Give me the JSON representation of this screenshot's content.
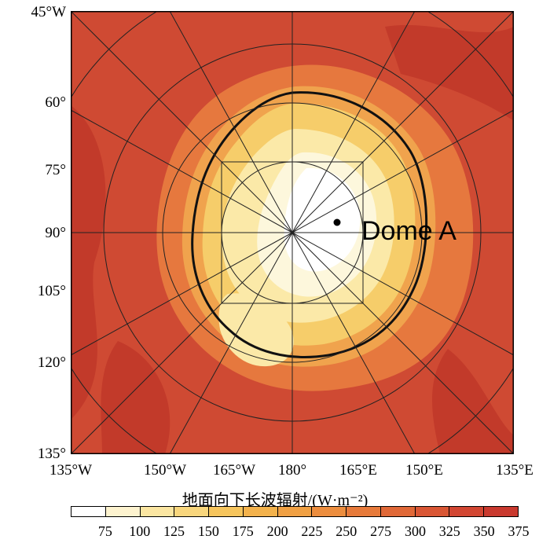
{
  "map": {
    "lat_labels": [
      "45°W",
      "60°",
      "75°",
      "90°",
      "105°",
      "120°",
      "135°"
    ],
    "lon_labels": [
      "135°W",
      "150°W",
      "165°W",
      "180°",
      "165°E",
      "150°E",
      "135°E"
    ],
    "marker_label": "Dome A",
    "colors": {
      "ocean": "#cf4a33",
      "ocean_dark": "#c23a2a",
      "sea_ice": "#e6783e",
      "coast": "#f0a34d",
      "ice_sheet_edge": "#f6cd6a",
      "ice_sheet": "#fbe9a8",
      "plateau": "#fdf7dc",
      "dome": "#ffffff"
    }
  },
  "colorbar": {
    "title": "地面向下长波辐射/(W·m⁻²)",
    "tick_labels": [
      "75",
      "100",
      "125",
      "150",
      "175",
      "200",
      "225",
      "250",
      "275",
      "300",
      "325",
      "350",
      "375"
    ],
    "colors": [
      "#ffffff",
      "#fdf3cf",
      "#fbe6a2",
      "#f8d67d",
      "#f6c55d",
      "#f3b24c",
      "#f0a043",
      "#ec8d3e",
      "#e77a3a",
      "#e06837",
      "#d95634",
      "#d24632",
      "#c9392e"
    ]
  }
}
